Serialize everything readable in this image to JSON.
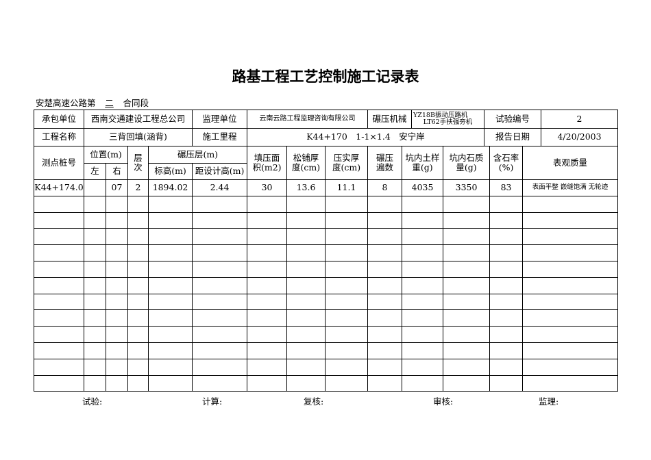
{
  "title": "路基工程工艺控制施工记录表",
  "subtitle": {
    "prefix": "安楚高速公路第",
    "section": "二",
    "suffix": "合同段"
  },
  "info": {
    "contractor_label": "承包单位",
    "contractor": "西南交通建设工程总公司",
    "supervisor_label": "监理单位",
    "supervisor": "云南云路工程监理咨询有限公司",
    "machine_label": "碾压机械",
    "machine_1": "YZ18B振动压路机",
    "machine_2": "LT62手扶强夯机",
    "test_no_label": "试验编号",
    "test_no": "2",
    "project_label": "工程名称",
    "project": "三背回填(涵背)",
    "mileage_label": "施工里程",
    "mileage": "K44+170　1-1×1.4　安宁岸",
    "date_label": "报告日期",
    "date": "4/20/2003"
  },
  "headers": {
    "station": "测点桩号",
    "position": "位置(m)",
    "left": "左",
    "right": "右",
    "layer": "层次",
    "compaction_layer": "碾压层(m)",
    "elevation": "标高(m)",
    "to_design": "距设计高(m)",
    "area": "填压面积(m2)",
    "loose": "松铺厚度(cm)",
    "compact": "压实厚度(cm)",
    "passes": "碾压遍数",
    "soil_weight": "坑内土样重(g)",
    "stone_mass": "坑内石质量(g)",
    "stone_rate": "含石率(%)",
    "appearance": "表观质量"
  },
  "rows": [
    [
      "K44+174.0",
      "",
      "07",
      "2",
      "1894.02",
      "2.44",
      "30",
      "13.6",
      "11.1",
      "8",
      "4035",
      "3350",
      "83",
      "表面平整 嵌缝饱满 无轮迹"
    ]
  ],
  "footer": {
    "test": "试验:",
    "calc": "计算:",
    "review": "复核:",
    "audit": "审核:",
    "supervision": "监理:"
  }
}
